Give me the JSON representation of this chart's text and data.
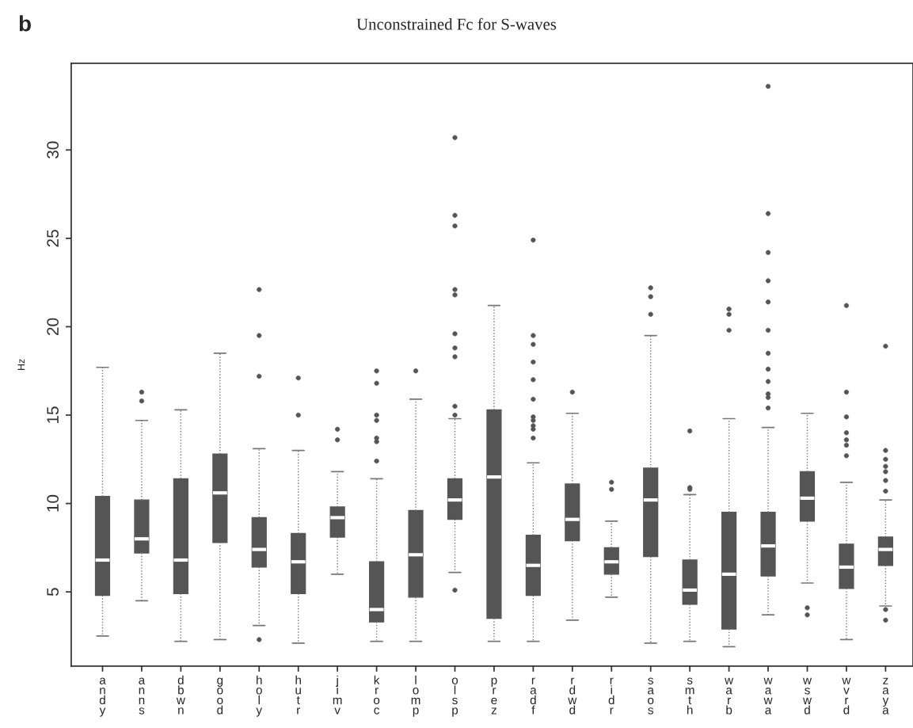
{
  "chart_data": {
    "type": "box",
    "title": "Unconstrained Fc for S-waves",
    "ylabel": "Hz",
    "annotations": [
      "b"
    ],
    "categories": [
      "andy",
      "anns",
      "dbwn",
      "good",
      "holy",
      "hutr",
      "jimv",
      "kroc",
      "lomp",
      "olsp",
      "prez",
      "radf",
      "rdwd",
      "ridr",
      "saos",
      "smth",
      "warb",
      "wawa",
      "wswd",
      "wvrd",
      "zaya"
    ],
    "color": "#555555",
    "grid": false,
    "ylim": [
      0.8,
      34.9
    ],
    "yticks": [
      5,
      10,
      15,
      20,
      25,
      30
    ],
    "boxes": [
      {
        "low": 2.5,
        "q1": 4.8,
        "median": 6.8,
        "q3": 10.4,
        "high": 17.7
      },
      {
        "low": 4.5,
        "q1": 7.2,
        "median": 8.0,
        "q3": 10.2,
        "high": 14.7,
        "outliers": [
          16.3,
          15.8
        ]
      },
      {
        "low": 2.2,
        "q1": 4.9,
        "median": 6.8,
        "q3": 11.4,
        "high": 15.3
      },
      {
        "low": 2.3,
        "q1": 7.8,
        "median": 10.6,
        "q3": 12.8,
        "high": 18.5
      },
      {
        "low": 3.1,
        "q1": 6.4,
        "median": 7.4,
        "q3": 9.2,
        "high": 13.1,
        "outliers": [
          22.1,
          19.5,
          17.2,
          2.3
        ]
      },
      {
        "low": 2.1,
        "q1": 4.9,
        "median": 6.7,
        "q3": 8.3,
        "high": 13.0,
        "outliers": [
          17.1,
          15.0
        ]
      },
      {
        "low": 6.0,
        "q1": 8.1,
        "median": 9.2,
        "q3": 9.8,
        "high": 11.8,
        "outliers": [
          14.2,
          13.6
        ]
      },
      {
        "low": 2.2,
        "q1": 3.3,
        "median": 4.0,
        "q3": 6.7,
        "high": 11.4,
        "outliers": [
          17.5,
          16.8,
          15.0,
          14.7,
          13.7,
          13.5,
          12.4
        ]
      },
      {
        "low": 2.2,
        "q1": 4.7,
        "median": 7.1,
        "q3": 9.6,
        "high": 15.9,
        "outliers": [
          17.5
        ]
      },
      {
        "low": 6.1,
        "q1": 9.1,
        "median": 10.2,
        "q3": 11.4,
        "high": 14.8,
        "outliers": [
          30.7,
          26.3,
          25.7,
          22.1,
          21.8,
          19.6,
          18.8,
          18.3,
          15.5,
          15.0,
          5.1
        ]
      },
      {
        "low": 2.2,
        "q1": 3.5,
        "median": 11.5,
        "q3": 15.3,
        "high": 21.2
      },
      {
        "low": 2.2,
        "q1": 4.8,
        "median": 6.5,
        "q3": 8.2,
        "high": 12.3,
        "outliers": [
          24.9,
          19.5,
          19.0,
          18.0,
          17.0,
          15.9,
          14.9,
          14.7,
          14.4,
          14.2,
          13.7
        ]
      },
      {
        "low": 3.4,
        "q1": 7.9,
        "median": 9.1,
        "q3": 11.1,
        "high": 15.1,
        "outliers": [
          16.3
        ]
      },
      {
        "low": 4.7,
        "q1": 6.0,
        "median": 6.7,
        "q3": 7.5,
        "high": 9.0,
        "outliers": [
          11.2,
          10.8
        ]
      },
      {
        "low": 2.1,
        "q1": 7.0,
        "median": 10.2,
        "q3": 12.0,
        "high": 19.5,
        "outliers": [
          22.2,
          21.7,
          20.7
        ]
      },
      {
        "low": 2.2,
        "q1": 4.3,
        "median": 5.1,
        "q3": 6.8,
        "high": 10.5,
        "outliers": [
          14.1,
          10.9,
          10.8
        ]
      },
      {
        "low": 1.9,
        "q1": 2.9,
        "median": 6.0,
        "q3": 9.5,
        "high": 14.8,
        "outliers": [
          21.0,
          20.7,
          19.8
        ]
      },
      {
        "low": 3.7,
        "q1": 5.9,
        "median": 7.6,
        "q3": 9.5,
        "high": 14.3,
        "outliers": [
          33.6,
          26.4,
          24.2,
          22.6,
          21.4,
          19.8,
          18.5,
          17.6,
          16.9,
          16.2,
          16.0,
          15.4
        ]
      },
      {
        "low": 5.5,
        "q1": 9.0,
        "median": 10.3,
        "q3": 11.8,
        "high": 15.1,
        "outliers": [
          4.1,
          3.7
        ]
      },
      {
        "low": 2.3,
        "q1": 5.2,
        "median": 6.4,
        "q3": 7.7,
        "high": 11.2,
        "outliers": [
          21.2,
          16.3,
          14.9,
          14.0,
          13.6,
          13.3,
          12.7
        ]
      },
      {
        "low": 4.2,
        "q1": 6.5,
        "median": 7.4,
        "q3": 8.1,
        "high": 10.2,
        "outliers": [
          18.9,
          13.0,
          12.5,
          12.1,
          11.8,
          11.3,
          10.7,
          4.0,
          3.4
        ]
      }
    ]
  }
}
